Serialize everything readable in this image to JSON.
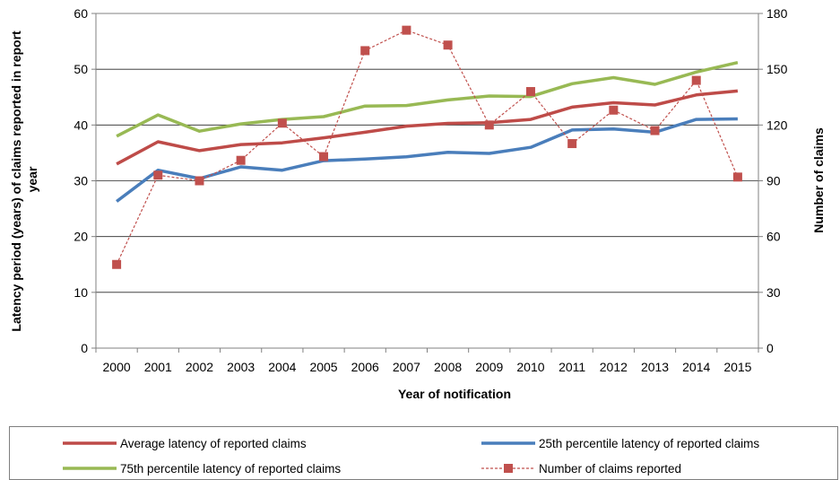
{
  "chart_data": {
    "type": "line",
    "categories": [
      "2000",
      "2001",
      "2002",
      "2003",
      "2004",
      "2005",
      "2006",
      "2007",
      "2008",
      "2009",
      "2010",
      "2011",
      "2012",
      "2013",
      "2014",
      "2015"
    ],
    "xlabel": "Year of notification",
    "ylabel_left": "Latency period (years) of claims reported in report year",
    "ylabel_right": "Number of claims",
    "ylim_left": [
      0,
      60
    ],
    "yticks_left": [
      0,
      10,
      20,
      30,
      40,
      50,
      60
    ],
    "ylim_right": [
      0,
      180
    ],
    "yticks_right": [
      0,
      30,
      60,
      90,
      120,
      150,
      180
    ],
    "grid": "horizontal",
    "legend_position": "bottom",
    "series": [
      {
        "name": "Average latency of reported claims",
        "axis": "left",
        "color": "#be4b48",
        "style": "solid",
        "values": [
          33.0,
          37.0,
          35.4,
          36.5,
          36.8,
          37.7,
          38.7,
          39.8,
          40.3,
          40.4,
          41.0,
          43.2,
          44.0,
          43.6,
          45.4,
          46.1
        ]
      },
      {
        "name": "25th percentile latency of reported claims",
        "axis": "left",
        "color": "#4a7ebb",
        "style": "solid",
        "values": [
          26.3,
          31.9,
          30.4,
          32.5,
          31.9,
          33.6,
          33.9,
          34.3,
          35.1,
          34.9,
          36.0,
          39.1,
          39.3,
          38.7,
          41.0,
          41.1
        ]
      },
      {
        "name": "75th percentile latency of reported claims",
        "axis": "left",
        "color": "#98b954",
        "style": "solid",
        "values": [
          38.0,
          41.8,
          38.9,
          40.2,
          41.0,
          41.5,
          43.4,
          43.5,
          44.5,
          45.2,
          45.1,
          47.4,
          48.5,
          47.3,
          49.5,
          51.2
        ]
      },
      {
        "name": "Number of claims reported",
        "axis": "right",
        "color": "#c0504d",
        "style": "dashed-marker",
        "values": [
          45,
          93,
          90,
          101,
          121,
          103,
          160,
          171,
          163,
          120,
          138,
          110,
          128,
          117,
          144,
          92
        ]
      }
    ]
  }
}
